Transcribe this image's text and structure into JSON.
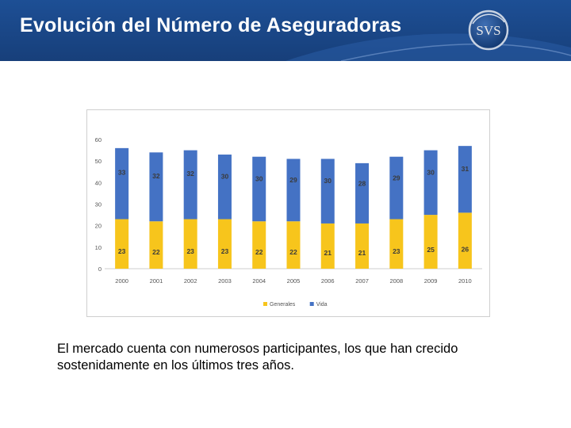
{
  "slide": {
    "title": "Evolución del Número de Aseguradoras",
    "logo_text": "SVS",
    "caption": "El mercado cuenta con numerosos participantes, los que han crecido sostenidamente en los últimos tres años."
  },
  "colors": {
    "header_bg": "#1d4f95",
    "generales": "#f7c51c",
    "vida": "#4472c4"
  },
  "chart_data": {
    "type": "bar",
    "stacked": true,
    "title": "",
    "xlabel": "",
    "ylabel": "",
    "ylim": [
      0,
      60
    ],
    "yticks": [
      0,
      10,
      20,
      30,
      40,
      50,
      60
    ],
    "categories": [
      "2000",
      "2001",
      "2002",
      "2003",
      "2004",
      "2005",
      "2006",
      "2007",
      "2008",
      "2009",
      "2010"
    ],
    "series": [
      {
        "name": "Generales",
        "color": "#f7c51c",
        "values": [
          23,
          22,
          23,
          23,
          22,
          22,
          21,
          21,
          23,
          25,
          26
        ]
      },
      {
        "name": "Vida",
        "color": "#4472c4",
        "values": [
          33,
          32,
          32,
          30,
          30,
          29,
          30,
          28,
          29,
          30,
          31
        ]
      }
    ],
    "legend_position": "bottom"
  }
}
